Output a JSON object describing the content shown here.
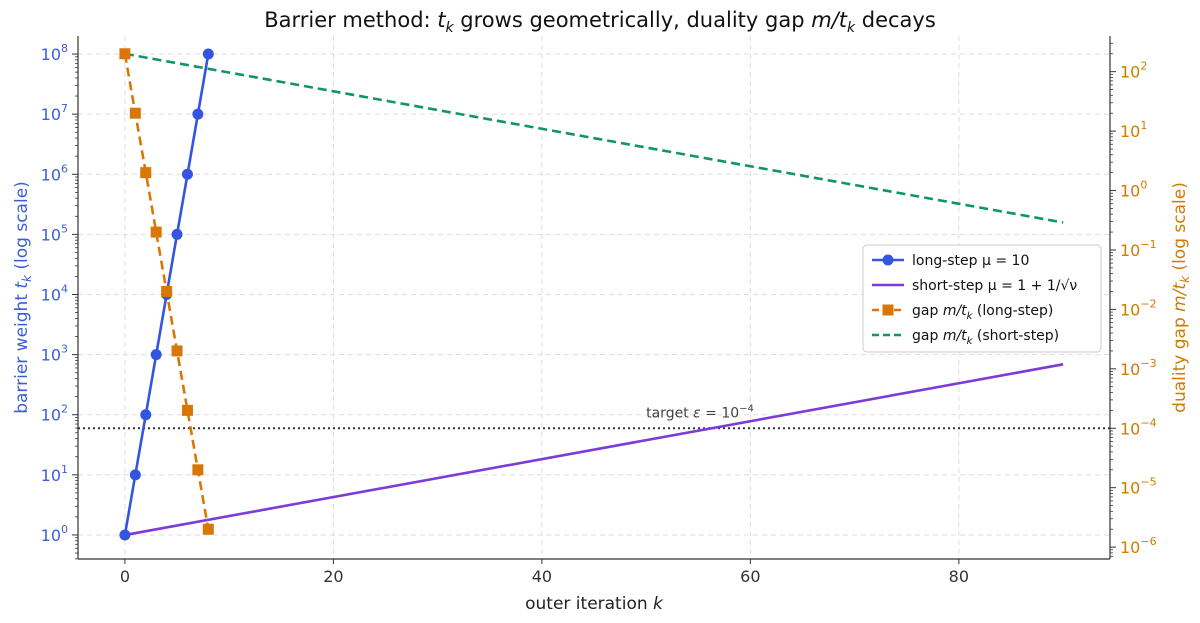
{
  "chart_data": {
    "type": "line",
    "title": "Barrier method: t_k grows geometrically, duality gap m/t_k decays",
    "title_parts": {
      "lead": "Barrier method: ",
      "var1": "t",
      "sub1": "k",
      "mid": " grows geometrically, duality gap ",
      "var2": "m/t",
      "sub2": "k",
      "tail": " decays"
    },
    "xlabel": "outer iteration  k",
    "xlabel_parts": {
      "text": "outer iteration  ",
      "var": "k"
    },
    "ylabel_left": "barrier weight  t_k  (log scale)",
    "ylabel_left_parts": {
      "text": "barrier weight  ",
      "var": "t",
      "sub": "k",
      "tail": "  (log scale)"
    },
    "ylabel_right": "duality gap  m/t_k  (log scale)",
    "ylabel_right_parts": {
      "text": "duality gap  ",
      "var": "m/t",
      "sub": "k",
      "tail": "  (log scale)"
    },
    "xlim": [
      -4.5,
      94.5
    ],
    "ylim_left_log10": [
      -0.4,
      8.3
    ],
    "ylim_right_log10": [
      -6.2,
      2.6
    ],
    "scale_y": "log",
    "grid": true,
    "legend_position": "center-right",
    "x_ticks": [
      0,
      20,
      40,
      60,
      80
    ],
    "y_left_ticks_exp": [
      0,
      1,
      2,
      3,
      4,
      5,
      6,
      7,
      8
    ],
    "y_right_ticks_exp": [
      -6,
      -5,
      -4,
      -3,
      -2,
      -1,
      0,
      1,
      2
    ],
    "colors": {
      "long_step": "#3355e0",
      "short_step": "#7d3bd8",
      "gap_long": "#d97706",
      "gap_short": "#10946b",
      "target": "#333333",
      "left_axis": "#3a5ed6",
      "right_axis": "#d17a00"
    },
    "series": [
      {
        "name": "long-step  μ = 10",
        "axis": "left",
        "style": "solid-circle",
        "x": [
          0,
          1,
          2,
          3,
          4,
          5,
          6,
          7,
          8
        ],
        "y": [
          1,
          10,
          100,
          1000,
          10000,
          100000,
          1000000,
          10000000,
          100000000
        ]
      },
      {
        "name": "short-step  μ = 1 + 1/√ν",
        "axis": "left",
        "style": "solid",
        "x": [
          0,
          90
        ],
        "y": [
          1,
          690
        ]
      },
      {
        "name": "gap m/t_k  (long-step)",
        "axis": "right",
        "style": "dashed-square",
        "x": [
          0,
          1,
          2,
          3,
          4,
          5,
          6,
          7,
          8
        ],
        "y": [
          200,
          20,
          2,
          0.2,
          0.02,
          0.002,
          0.0002,
          2e-05,
          2e-06
        ]
      },
      {
        "name": "gap m/t_k  (short-step)",
        "axis": "right",
        "style": "dashed",
        "x": [
          0,
          90
        ],
        "y": [
          200,
          0.29
        ]
      }
    ],
    "legend": [
      {
        "key": "long",
        "text": "long-step  μ = 10"
      },
      {
        "key": "short",
        "text": "short-step  μ = 1 + 1/√ν"
      },
      {
        "key": "gap_long",
        "text_pre": "gap ",
        "var": "m/t",
        "sub": "k",
        "text_post": "  (long-step)"
      },
      {
        "key": "gap_short",
        "text_pre": "gap ",
        "var": "m/t",
        "sub": "k",
        "text_post": "  (short-step)"
      }
    ],
    "annotations": [
      {
        "text": "target ε = 10⁻⁴",
        "pre": "target ",
        "var": "ε",
        "mid": " = 10",
        "sup": "−4",
        "y_right": 0.0001
      }
    ]
  }
}
